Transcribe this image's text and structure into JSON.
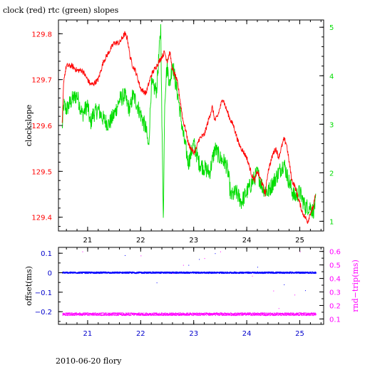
{
  "figure": {
    "title": "clock (red) rtc (green) slopes",
    "footer": "2010-06-20 flory"
  },
  "chart_data": [
    {
      "type": "line",
      "xlim": [
        20.45,
        25.45
      ],
      "x_ticks": [
        "21",
        "22",
        "23",
        "24",
        "25"
      ],
      "x_tick_color": "#000000",
      "ylabel": "clockslope",
      "ylabel_color": "#000000",
      "ylim": [
        129.37,
        129.83
      ],
      "y_ticks": [
        "129.8",
        "129.7",
        "129.6",
        "129.5",
        "129.4"
      ],
      "y_tick_color": "#ff0000",
      "y2lim": [
        0.8,
        5.15
      ],
      "y2_ticks": [
        "5",
        "4",
        "3",
        "2",
        "1"
      ],
      "y2_tick_color": "#00dd00",
      "series": [
        {
          "name": "clock",
          "color": "#ff0000",
          "axis": "left",
          "noise": 0.006,
          "x": [
            20.52,
            20.55,
            20.6,
            20.7,
            20.8,
            20.9,
            21.0,
            21.05,
            21.1,
            21.2,
            21.3,
            21.4,
            21.5,
            21.6,
            21.7,
            21.75,
            21.8,
            21.85,
            21.9,
            22.0,
            22.1,
            22.2,
            22.3,
            22.4,
            22.45,
            22.5,
            22.55,
            22.6,
            22.65,
            22.7,
            22.75,
            22.8,
            22.85,
            22.9,
            22.95,
            23.0,
            23.05,
            23.1,
            23.2,
            23.3,
            23.35,
            23.4,
            23.45,
            23.5,
            23.55,
            23.6,
            23.7,
            23.75,
            23.8,
            23.85,
            23.9,
            24.0,
            24.05,
            24.1,
            24.15,
            24.2,
            24.3,
            24.35,
            24.4,
            24.5,
            24.55,
            24.6,
            24.65,
            24.7,
            24.75,
            24.8,
            24.85,
            24.9,
            25.0,
            25.05,
            25.1,
            25.15,
            25.2,
            25.25,
            25.3
          ],
          "y": [
            129.6,
            129.7,
            129.73,
            129.73,
            129.72,
            129.72,
            129.7,
            129.69,
            129.69,
            129.7,
            129.74,
            129.76,
            129.78,
            129.78,
            129.8,
            129.79,
            129.75,
            129.73,
            129.72,
            129.68,
            129.67,
            129.71,
            129.73,
            129.75,
            129.76,
            129.74,
            129.76,
            129.72,
            129.71,
            129.69,
            129.65,
            129.61,
            129.59,
            129.56,
            129.55,
            129.54,
            129.55,
            129.57,
            129.58,
            129.62,
            129.64,
            129.61,
            129.62,
            129.64,
            129.66,
            129.64,
            129.61,
            129.6,
            129.58,
            129.56,
            129.55,
            129.53,
            129.51,
            129.49,
            129.48,
            129.5,
            129.47,
            129.45,
            129.5,
            129.54,
            129.55,
            129.53,
            129.55,
            129.57,
            129.56,
            129.52,
            129.48,
            129.47,
            129.43,
            129.41,
            129.4,
            129.39,
            129.41,
            129.42,
            129.45
          ]
        },
        {
          "name": "rtc",
          "color": "#00dd00",
          "axis": "right",
          "noise": 0.18,
          "x": [
            20.52,
            20.55,
            20.6,
            20.7,
            20.8,
            20.9,
            21.0,
            21.05,
            21.1,
            21.2,
            21.3,
            21.4,
            21.5,
            21.6,
            21.7,
            21.75,
            21.8,
            21.85,
            21.9,
            22.0,
            22.1,
            22.15,
            22.2,
            22.3,
            22.38,
            22.4,
            22.43,
            22.45,
            22.48,
            22.5,
            22.55,
            22.6,
            22.65,
            22.7,
            22.8,
            22.85,
            22.9,
            23.0,
            23.05,
            23.1,
            23.2,
            23.3,
            23.4,
            23.5,
            23.6,
            23.65,
            23.7,
            23.8,
            23.9,
            24.0,
            24.1,
            24.2,
            24.3,
            24.4,
            24.5,
            24.6,
            24.7,
            24.8,
            24.9,
            25.0,
            25.1,
            25.2,
            25.25,
            25.3
          ],
          "y": [
            2.9,
            3.4,
            3.3,
            3.5,
            3.6,
            3.2,
            3.4,
            3.0,
            3.2,
            3.3,
            3.1,
            3.0,
            3.2,
            3.5,
            3.6,
            3.4,
            3.3,
            3.6,
            3.5,
            3.2,
            2.9,
            2.5,
            3.8,
            3.7,
            5.0,
            3.0,
            1.0,
            3.4,
            4.0,
            4.2,
            3.8,
            4.3,
            3.9,
            3.6,
            2.8,
            2.5,
            2.2,
            2.6,
            2.4,
            2.2,
            2.1,
            2.0,
            2.5,
            2.3,
            2.2,
            2.0,
            1.5,
            1.6,
            1.4,
            1.6,
            1.8,
            2.0,
            1.7,
            1.6,
            1.8,
            2.0,
            2.2,
            1.8,
            1.5,
            1.6,
            1.3,
            1.3,
            1.2,
            1.4
          ]
        }
      ]
    },
    {
      "type": "scatter",
      "xlim": [
        20.45,
        25.45
      ],
      "x_ticks": [
        "21",
        "22",
        "23",
        "24",
        "25"
      ],
      "x_tick_color": "#0000cc",
      "ylabel": "offset(ms)",
      "ylabel_color": "#000000",
      "ylim": [
        -0.265,
        0.13
      ],
      "y_ticks": [
        "0.1",
        "0",
        "−0.1",
        "−0.2"
      ],
      "y_tick_color": "#0000cc",
      "y2label": "rnd−trip(ms)",
      "y2label_color": "#ff00ff",
      "y2lim": [
        0.06,
        0.63
      ],
      "y2_ticks": [
        "0.6",
        "0.5",
        "0.4",
        "0.3",
        "0.2",
        "0.1"
      ],
      "y2_tick_color": "#ff00ff",
      "series": [
        {
          "name": "offset",
          "color": "#0000ff",
          "axis": "left",
          "x_range": [
            20.52,
            25.3
          ],
          "level": 0.0,
          "spread": 0.004,
          "outliers": [
            [
              21.7,
              0.09
            ],
            [
              22.9,
              0.04
            ],
            [
              23.1,
              0.07
            ],
            [
              23.4,
              0.1
            ],
            [
              24.2,
              0.03
            ],
            [
              24.7,
              -0.06
            ],
            [
              25.1,
              -0.09
            ],
            [
              22.3,
              -0.05
            ]
          ]
        },
        {
          "name": "rnd-trip",
          "color": "#ff00ff",
          "axis": "right",
          "x_range": [
            20.52,
            25.3
          ],
          "level": 0.135,
          "spread": 0.01,
          "outliers": [
            [
              20.9,
              0.6
            ],
            [
              22.0,
              0.57
            ],
            [
              22.6,
              0.44
            ],
            [
              22.8,
              0.5
            ],
            [
              23.2,
              0.55
            ],
            [
              23.5,
              0.6
            ],
            [
              24.1,
              0.42
            ],
            [
              24.5,
              0.31
            ],
            [
              24.9,
              0.28
            ],
            [
              25.0,
              0.6
            ],
            [
              24.6,
              0.18
            ]
          ]
        }
      ]
    }
  ]
}
